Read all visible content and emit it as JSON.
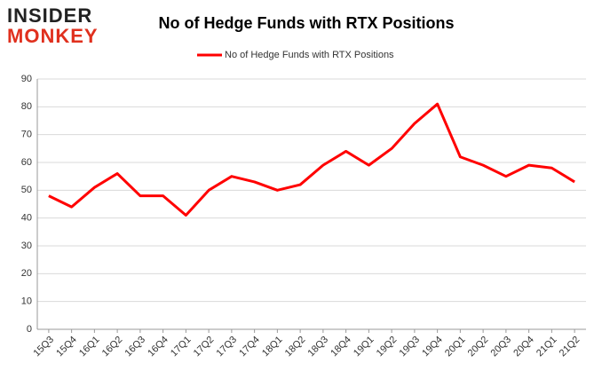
{
  "logo": {
    "line1": "INSIDER",
    "line2": "MONKEY"
  },
  "chart_data": {
    "type": "line",
    "title": "No of Hedge Funds with RTX Positions",
    "categories": [
      "15Q3",
      "15Q4",
      "16Q1",
      "16Q2",
      "16Q3",
      "16Q4",
      "17Q1",
      "17Q2",
      "17Q3",
      "17Q4",
      "18Q1",
      "18Q2",
      "18Q3",
      "18Q4",
      "19Q1",
      "19Q2",
      "19Q3",
      "19Q4",
      "20Q1",
      "20Q2",
      "20Q3",
      "20Q4",
      "21Q1",
      "21Q2"
    ],
    "series": [
      {
        "name": "No of Hedge Funds with RTX Positions",
        "color": "#ff0000",
        "values": [
          48,
          44,
          51,
          56,
          48,
          48,
          41,
          50,
          55,
          53,
          50,
          52,
          59,
          64,
          59,
          65,
          74,
          81,
          62,
          59,
          55,
          59,
          58,
          53
        ]
      }
    ],
    "ylim": [
      0,
      90
    ],
    "yticks": [
      0,
      10,
      20,
      30,
      40,
      50,
      60,
      70,
      80,
      90
    ],
    "grid": true,
    "legend": "top"
  }
}
